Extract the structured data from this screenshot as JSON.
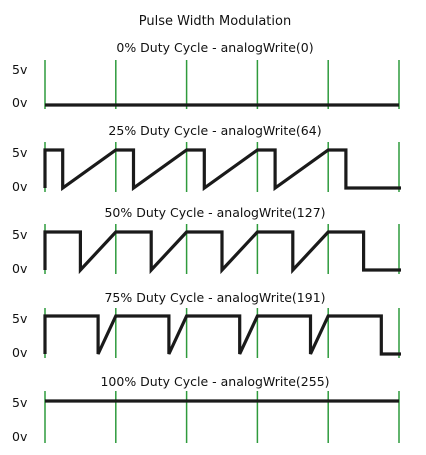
{
  "title": "Pulse Width Modulation",
  "colors": {
    "signal": "#1a1a1a",
    "period_marker": "#2e9a3c",
    "text": "#111111",
    "background": "#ffffff"
  },
  "y_labels": {
    "high": "5v",
    "low": "0v"
  },
  "periods_shown": 5,
  "plots": [
    {
      "title": "0% Duty Cycle - analogWrite(0)",
      "duty": 0.0,
      "analog_value": 0
    },
    {
      "title": "25% Duty Cycle - analogWrite(64)",
      "duty": 0.25,
      "analog_value": 64
    },
    {
      "title": "50% Duty Cycle - analogWrite(127)",
      "duty": 0.5,
      "analog_value": 127
    },
    {
      "title": "75% Duty Cycle - analogWrite(191)",
      "duty": 0.75,
      "analog_value": 191
    },
    {
      "title": "100% Duty Cycle - analogWrite(255)",
      "duty": 1.0,
      "analog_value": 255
    }
  ]
}
